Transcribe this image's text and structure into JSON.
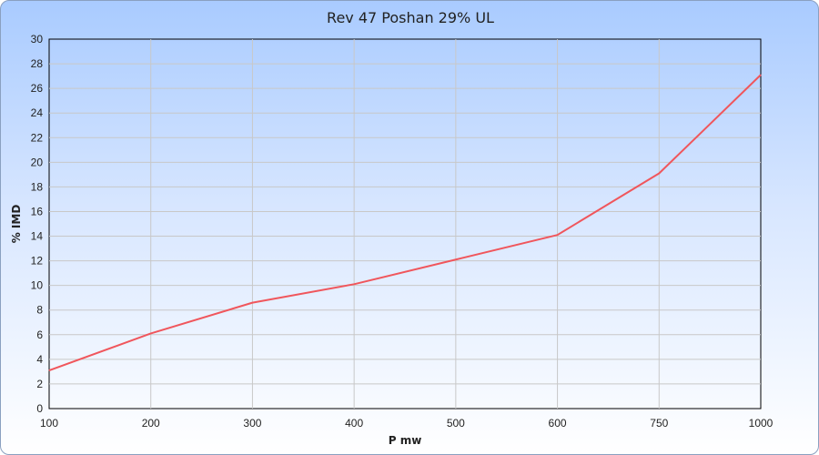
{
  "chart_data": {
    "type": "line",
    "title": "Rev 47 Poshan 29% UL",
    "xlabel": "P mw",
    "ylabel": "% IMD",
    "categories": [
      "100",
      "200",
      "300",
      "400",
      "500",
      "600",
      "750",
      "1000"
    ],
    "series": [
      {
        "values": [
          3.1,
          6.1,
          8.6,
          10.1,
          12.1,
          14.1,
          19.1,
          27.1
        ],
        "color": "#f0565c"
      }
    ],
    "ylim": [
      0,
      30
    ],
    "yticks": [
      0,
      2,
      4,
      6,
      8,
      10,
      12,
      14,
      16,
      18,
      20,
      22,
      24,
      26,
      28,
      30
    ],
    "grid": true,
    "legend": "none"
  }
}
